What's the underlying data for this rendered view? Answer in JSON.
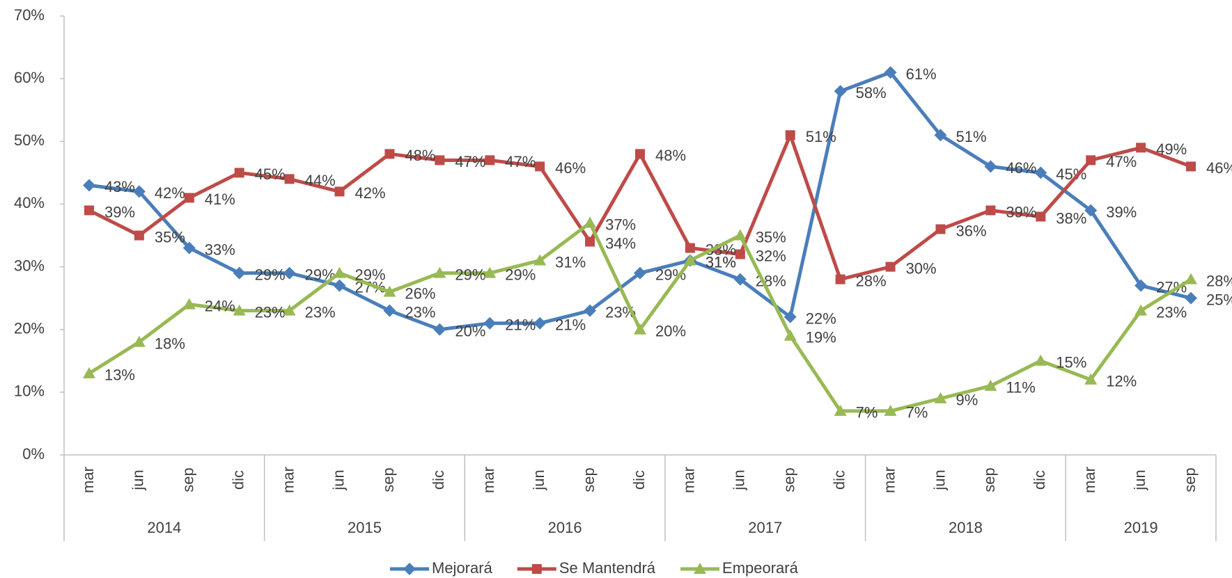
{
  "chart_data": {
    "type": "line",
    "category_groups": [
      {
        "name": "2014",
        "categories": [
          "mar",
          "jun",
          "sep",
          "dic"
        ]
      },
      {
        "name": "2015",
        "categories": [
          "mar",
          "jun",
          "sep",
          "dic"
        ]
      },
      {
        "name": "2016",
        "categories": [
          "mar",
          "jun",
          "sep",
          "dic"
        ]
      },
      {
        "name": "2017",
        "categories": [
          "mar",
          "jun",
          "sep",
          "dic"
        ]
      },
      {
        "name": "2018",
        "categories": [
          "mar",
          "jun",
          "sep",
          "dic"
        ]
      },
      {
        "name": "2019",
        "categories": [
          "mar",
          "jun",
          "sep"
        ]
      }
    ],
    "series": [
      {
        "name": "Mejorará",
        "color": "#4a7ebb",
        "marker": "diamond",
        "values": [
          43,
          42,
          33,
          29,
          29,
          27,
          23,
          20,
          21,
          21,
          23,
          29,
          31,
          28,
          22,
          58,
          61,
          51,
          46,
          45,
          39,
          27,
          25
        ],
        "value_labels": [
          "43%",
          "42%",
          "33%",
          "29%",
          "29%",
          "27%",
          "23%",
          "20%",
          "21%",
          "21%",
          "23%",
          "29%",
          "31%",
          "28%",
          "22%",
          "58%",
          "61%",
          "51%",
          "46%",
          "45%",
          "39%",
          "27%",
          "25%"
        ]
      },
      {
        "name": "Se Mantendrá",
        "color": "#be4b48",
        "marker": "square",
        "values": [
          39,
          35,
          41,
          45,
          44,
          42,
          48,
          47,
          47,
          46,
          34,
          48,
          33,
          32,
          51,
          28,
          30,
          36,
          39,
          38,
          47,
          49,
          46
        ],
        "value_labels": [
          "39%",
          "35%",
          "41%",
          "45%",
          "44%",
          "42%",
          "48%",
          "47%",
          "47%",
          "46%",
          "34%",
          "48%",
          "33%",
          "32%",
          "51%",
          "28%",
          "30%",
          "36%",
          "39%",
          "38%",
          "47%",
          "49%",
          "46%"
        ]
      },
      {
        "name": "Empeorará",
        "color": "#98b954",
        "marker": "triangle",
        "values": [
          13,
          18,
          24,
          23,
          23,
          29,
          26,
          29,
          29,
          31,
          37,
          20,
          31,
          35,
          19,
          7,
          7,
          9,
          11,
          15,
          12,
          23,
          28
        ],
        "value_labels": [
          "13%",
          "18%",
          "24%",
          "23%",
          "23%",
          "29%",
          "26%",
          "29%",
          "29%",
          "31%",
          "37%",
          "20%",
          "31%",
          "35%",
          "19%",
          "7%",
          "7%",
          "9%",
          "11%",
          "15%",
          "12%",
          "23%",
          "28%"
        ]
      }
    ],
    "ylim": [
      0,
      70
    ],
    "yticks": [
      {
        "value": 0,
        "label": "0%"
      },
      {
        "value": 10,
        "label": "10%"
      },
      {
        "value": 20,
        "label": "20%"
      },
      {
        "value": 30,
        "label": "30%"
      },
      {
        "value": 40,
        "label": "40%"
      },
      {
        "value": 50,
        "label": "50%"
      },
      {
        "value": 60,
        "label": "60%"
      },
      {
        "value": 70,
        "label": "70%"
      }
    ],
    "legend": "bottom"
  }
}
